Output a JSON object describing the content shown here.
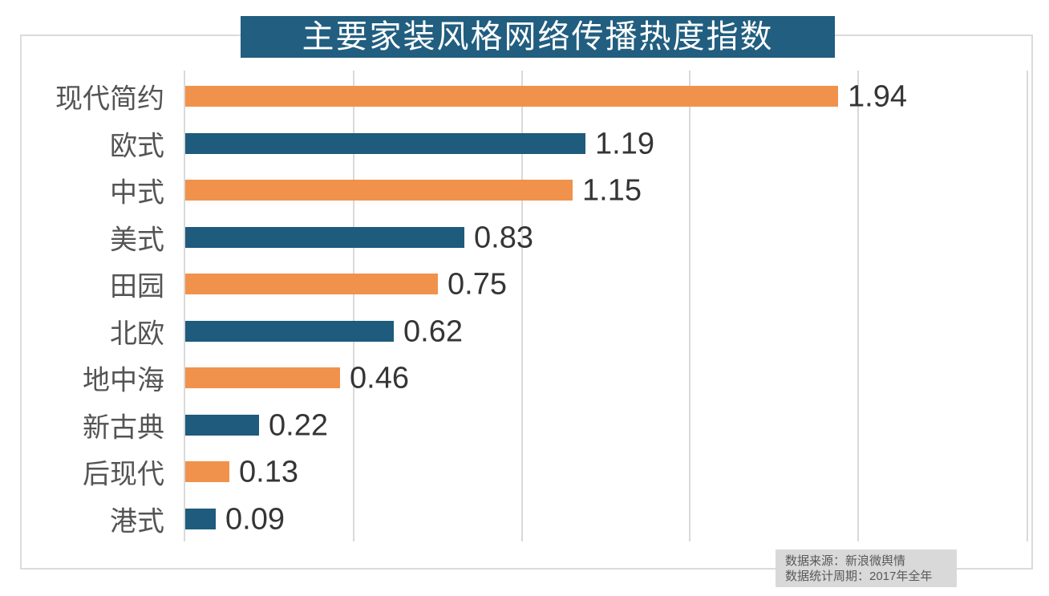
{
  "banner": {
    "title": "主要家装风格网络传播热度指数",
    "bg_color": "#215E80",
    "text_color": "#FFFFFF"
  },
  "source_box": {
    "line1": "数据来源：新浪微舆情",
    "line2": "数据统计周期：2017年全年",
    "bg_color": "#D9D9D9",
    "text_color": "#595959"
  },
  "colors": {
    "bar_orange": "#F0924B",
    "bar_teal": "#1E5B7D",
    "gridline": "#D9D9D9",
    "category_label": "#545454",
    "value_label": "#353535",
    "frame_border": "#DBDBDB"
  },
  "chart_data": {
    "type": "bar",
    "orientation": "horizontal",
    "title": "主要家装风格网络传播热度指数",
    "categories": [
      "现代简约",
      "欧式",
      "中式",
      "美式",
      "田园",
      "北欧",
      "地中海",
      "新古典",
      "后现代",
      "港式"
    ],
    "values": [
      1.94,
      1.19,
      1.15,
      0.83,
      0.75,
      0.62,
      0.46,
      0.22,
      0.13,
      0.09
    ],
    "xlabel": "",
    "ylabel": "",
    "xlim": [
      0,
      2.5
    ],
    "gridline_step": 0.5,
    "grid": true,
    "legend": false,
    "value_labels": true,
    "value_label_format": "0.00",
    "bar_colors_alternate": [
      "#F0924B",
      "#1E5B7D"
    ],
    "sort_order": "descending"
  }
}
